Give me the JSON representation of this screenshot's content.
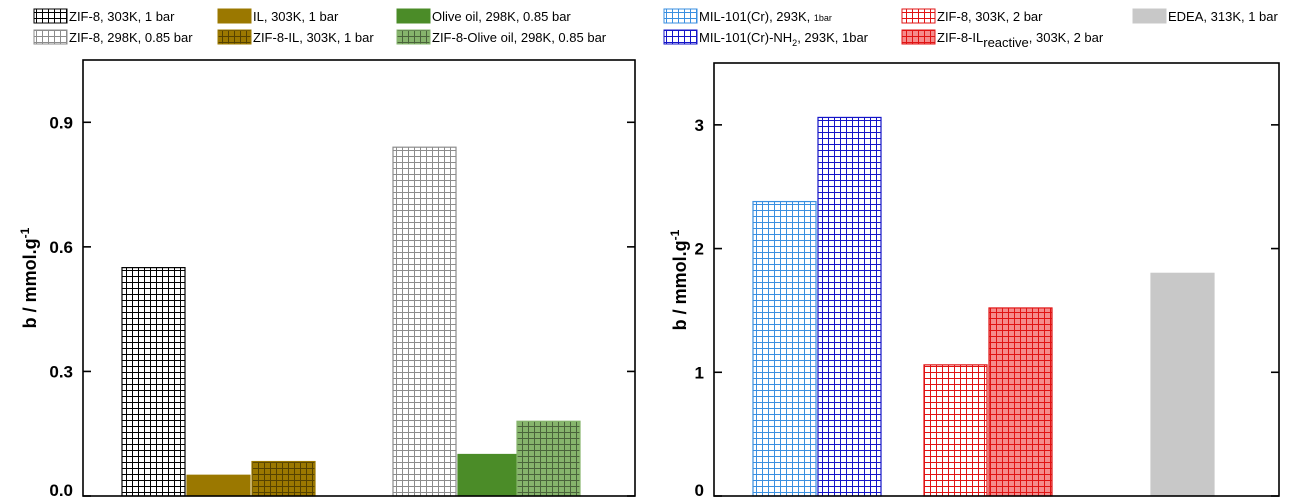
{
  "chart_data": [
    {
      "type": "bar",
      "ylabel": "b / mmol.g",
      "ylabel_superscript": "-1",
      "ylim": [
        0,
        1.05
      ],
      "yticks": [
        "0.0",
        "0.3",
        "0.6",
        "0.9"
      ],
      "ytick_values": [
        0,
        0.3,
        0.6,
        0.9
      ],
      "legend_placement": "top",
      "series": [
        {
          "name": "ZIF-8, 303K, 1 bar",
          "value": 0.55,
          "color": "#000000",
          "style": "grid"
        },
        {
          "name": "IL, 303K, 1 bar",
          "value": 0.05,
          "color": "#9b7800",
          "style": "solid"
        },
        {
          "name": "ZIF-8-IL, 303K, 1 bar",
          "value": 0.083,
          "color": "#9b7800",
          "style": "grid-fill"
        },
        {
          "name": "ZIF-8, 298K, 0.85 bar",
          "value": 0.84,
          "color": "#8c8c8c",
          "style": "grid"
        },
        {
          "name": "Olive oil, 298K, 0.85 bar",
          "value": 0.1,
          "color": "#4b8c28",
          "style": "solid"
        },
        {
          "name": "ZIF-8-Olive oil, 298K, 0.85 bar",
          "value": 0.18,
          "color": "#86b46c",
          "style": "grid-fill"
        }
      ]
    },
    {
      "type": "bar",
      "ylabel": "b / mmol.g",
      "ylabel_superscript": "-1",
      "ylim": [
        0,
        3.5
      ],
      "yticks": [
        "0",
        "1",
        "2",
        "3"
      ],
      "ytick_values": [
        0,
        1,
        2,
        3
      ],
      "legend_placement": "top",
      "series": [
        {
          "name": "MIL-101(Cr), 293K, ",
          "name_small": "1bar",
          "value": 2.38,
          "color": "#3a8fe0",
          "style": "grid"
        },
        {
          "name": "MIL-101(Cr)-NH",
          "name_sub": "2",
          "name_rest": ", 293K, 1bar",
          "value": 3.06,
          "color": "#1414c8",
          "style": "grid"
        },
        {
          "name": "ZIF-8, 303K, 2 bar",
          "value": 1.06,
          "color": "#e01414",
          "style": "grid"
        },
        {
          "name": "ZIF-8-IL",
          "name_sub": "reactive",
          "name_rest": ", 303K, 2 bar",
          "value": 1.52,
          "color": "#e01414",
          "fill": "#f58c8c",
          "style": "grid-fill"
        },
        {
          "name": "EDEA, 313K, 1 bar",
          "value": 1.8,
          "color": "#c8c8c8",
          "style": "solid"
        }
      ]
    }
  ]
}
